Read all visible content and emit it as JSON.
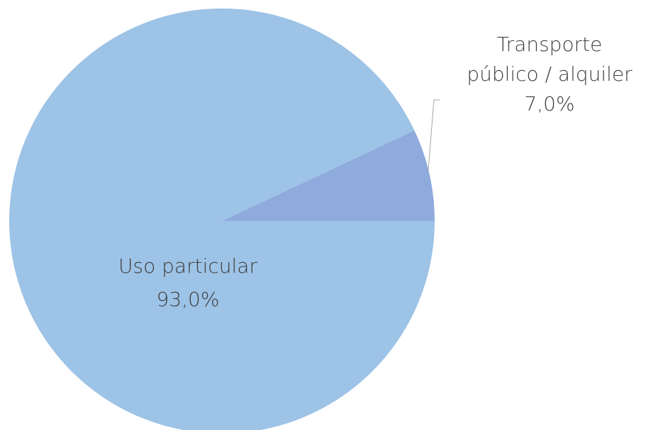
{
  "chart_data": {
    "type": "pie",
    "categories": [
      "Uso particular",
      "Transporte público / alquiler"
    ],
    "values": [
      93.0,
      7.0
    ],
    "value_labels": [
      "93,0%",
      "7,0%"
    ],
    "colors": [
      "#9dc3e6",
      "#8faadc"
    ]
  }
}
